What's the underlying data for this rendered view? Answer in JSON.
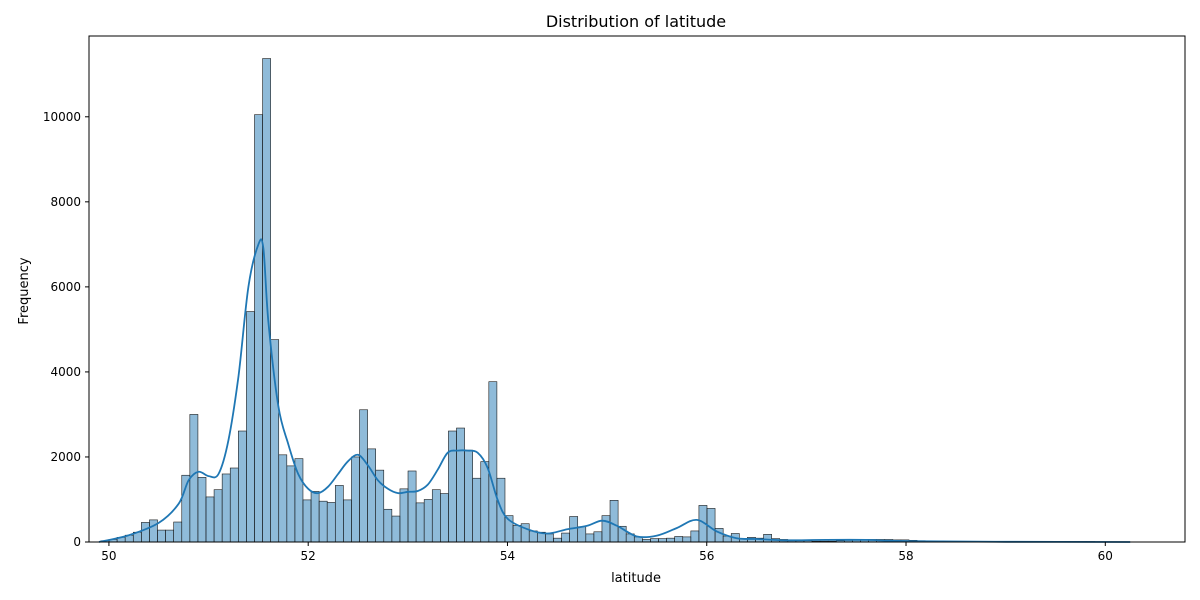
{
  "chart_data": {
    "type": "bar",
    "title": "Distribution of latitude",
    "xlabel": "latitude",
    "ylabel": "Frequency",
    "xlim": [
      49.8,
      60.8
    ],
    "ylim": [
      0,
      11900
    ],
    "xticks": [
      50,
      52,
      54,
      56,
      58,
      60
    ],
    "yticks": [
      0,
      2000,
      4000,
      6000,
      8000,
      10000
    ],
    "bin_start": 49.92,
    "bin_width": 0.0811,
    "bar_color": "#1f77b4",
    "line_color": "#1f77b4",
    "grid": false,
    "values": [
      30,
      60,
      110,
      160,
      230,
      460,
      520,
      280,
      280,
      470,
      1570,
      3000,
      1520,
      1060,
      1230,
      1600,
      1740,
      2610,
      5420,
      10050,
      11370,
      4760,
      2050,
      1790,
      1960,
      990,
      1190,
      960,
      930,
      1330,
      990,
      2000,
      3110,
      2190,
      1690,
      770,
      610,
      1250,
      1670,
      920,
      1000,
      1230,
      1140,
      2610,
      2680,
      2160,
      1500,
      1890,
      3770,
      1500,
      620,
      390,
      430,
      260,
      230,
      190,
      90,
      210,
      600,
      360,
      190,
      240,
      620,
      980,
      370,
      190,
      120,
      60,
      80,
      80,
      90,
      130,
      120,
      260,
      860,
      790,
      320,
      140,
      200,
      70,
      110,
      90,
      180,
      80,
      60,
      40,
      30,
      30,
      20,
      20,
      20,
      30,
      40,
      50,
      60,
      60,
      60,
      60,
      50,
      50,
      40,
      30,
      20,
      10,
      10,
      10,
      10,
      10,
      10,
      10,
      10,
      10,
      10,
      10,
      10,
      10,
      10,
      10,
      10,
      10,
      10,
      10,
      10
    ],
    "kde": {
      "x": [
        49.9,
        50.2,
        50.5,
        50.7,
        50.8,
        50.9,
        51.0,
        51.1,
        51.2,
        51.3,
        51.4,
        51.5,
        51.55,
        51.6,
        51.7,
        51.8,
        51.9,
        52.0,
        52.1,
        52.2,
        52.3,
        52.4,
        52.5,
        52.6,
        52.7,
        52.8,
        52.9,
        53.0,
        53.1,
        53.2,
        53.3,
        53.4,
        53.5,
        53.6,
        53.7,
        53.8,
        53.9,
        54.0,
        54.2,
        54.4,
        54.6,
        54.8,
        54.95,
        55.1,
        55.3,
        55.5,
        55.7,
        55.9,
        56.1,
        56.3,
        56.5,
        56.8,
        57.2,
        57.6,
        58.0,
        59.0,
        60.25
      ],
      "y": [
        0,
        160,
        450,
        900,
        1450,
        1650,
        1550,
        1600,
        2400,
        3900,
        6000,
        7000,
        6900,
        5200,
        3200,
        2300,
        1600,
        1250,
        1150,
        1300,
        1600,
        1900,
        2050,
        1800,
        1450,
        1250,
        1150,
        1180,
        1200,
        1350,
        1700,
        2100,
        2150,
        2150,
        2100,
        1750,
        1000,
        550,
        300,
        200,
        300,
        380,
        500,
        380,
        130,
        150,
        330,
        520,
        250,
        90,
        70,
        40,
        50,
        50,
        20,
        5,
        0
      ]
    }
  }
}
